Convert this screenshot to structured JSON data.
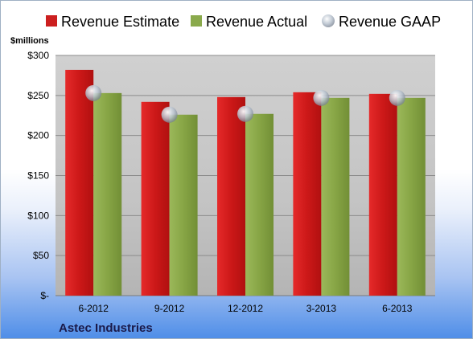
{
  "chart_data": {
    "type": "bar",
    "categories": [
      "6-2012",
      "9-2012",
      "12-2012",
      "3-2013",
      "6-2013"
    ],
    "series": [
      {
        "name": "Revenue Estimate",
        "values": [
          282,
          242,
          248,
          254,
          252
        ],
        "color": "#cc1f1f"
      },
      {
        "name": "Revenue Actual",
        "values": [
          253,
          226,
          227,
          247,
          247
        ],
        "color": "#8aaa4c"
      },
      {
        "name": "Revenue GAAP",
        "values": [
          253,
          226,
          227,
          247,
          247
        ],
        "color": "#c9d3e0",
        "marker": "circle"
      }
    ],
    "ylabel": "$millions",
    "ylim": [
      0,
      300
    ],
    "yticks": [
      0,
      50,
      100,
      150,
      200,
      250,
      300
    ],
    "ytick_labels": [
      "$-",
      "$50",
      "$100",
      "$150",
      "$200",
      "$250",
      "$300"
    ],
    "grid": true,
    "legend_position": "top",
    "plot_background": "#c8c8c8"
  },
  "footer": {
    "company": "Astec Industries"
  }
}
